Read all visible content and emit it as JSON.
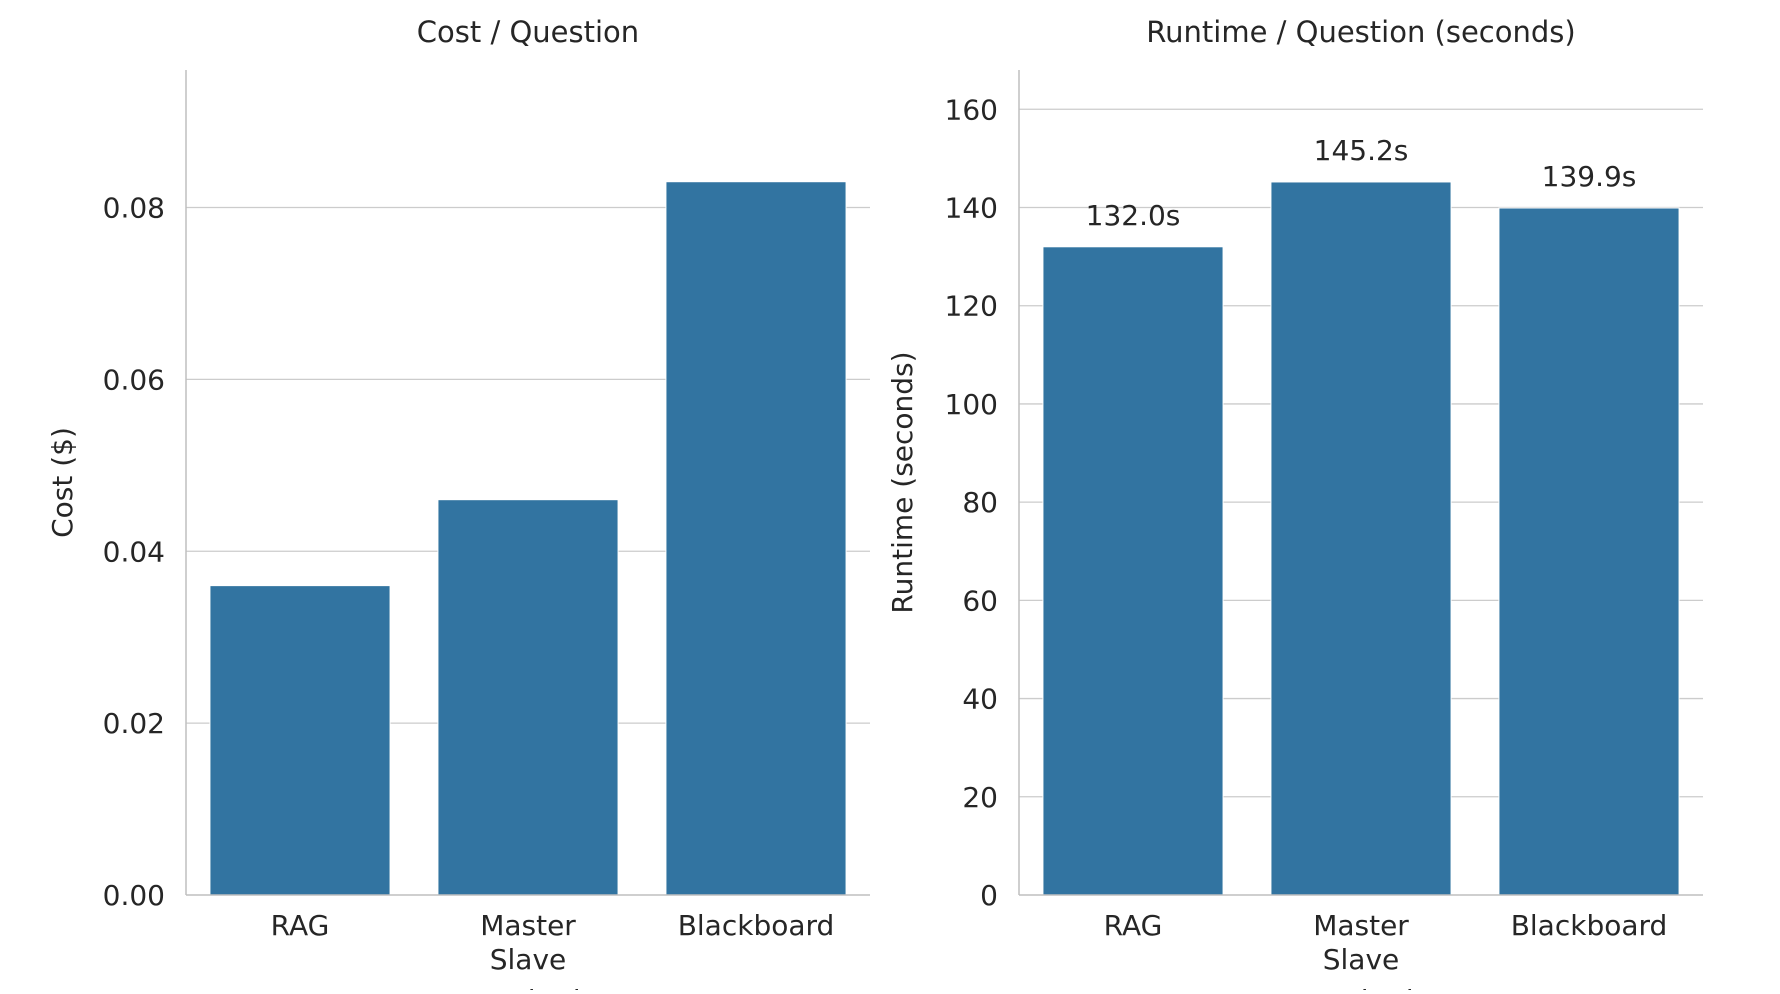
{
  "chart_data": [
    {
      "type": "bar",
      "title": "Cost / Question",
      "xlabel": "Method",
      "ylabel": "Cost ($)",
      "categories": [
        "RAG",
        "Master\nSlave",
        "Blackboard"
      ],
      "values": [
        0.036,
        0.046,
        0.083
      ],
      "ylim": [
        0,
        0.096
      ],
      "yticks": [
        0.0,
        0.02,
        0.04,
        0.06,
        0.08
      ],
      "ytick_labels": [
        "0.00",
        "0.02",
        "0.04",
        "0.06",
        "0.08"
      ],
      "data_labels": [],
      "grid": true,
      "color": "#3274a1"
    },
    {
      "type": "bar",
      "title": "Runtime / Question (seconds)",
      "xlabel": "Method",
      "ylabel": "Runtime (seconds)",
      "categories": [
        "RAG",
        "Master\nSlave",
        "Blackboard"
      ],
      "values": [
        132.0,
        145.2,
        139.9
      ],
      "ylim": [
        0,
        168
      ],
      "yticks": [
        0,
        20,
        40,
        60,
        80,
        100,
        120,
        140,
        160
      ],
      "ytick_labels": [
        "0",
        "20",
        "40",
        "60",
        "80",
        "100",
        "120",
        "140",
        "160"
      ],
      "data_labels": [
        "132.0s",
        "145.2s",
        "139.9s"
      ],
      "grid": true,
      "color": "#3274a1"
    }
  ]
}
